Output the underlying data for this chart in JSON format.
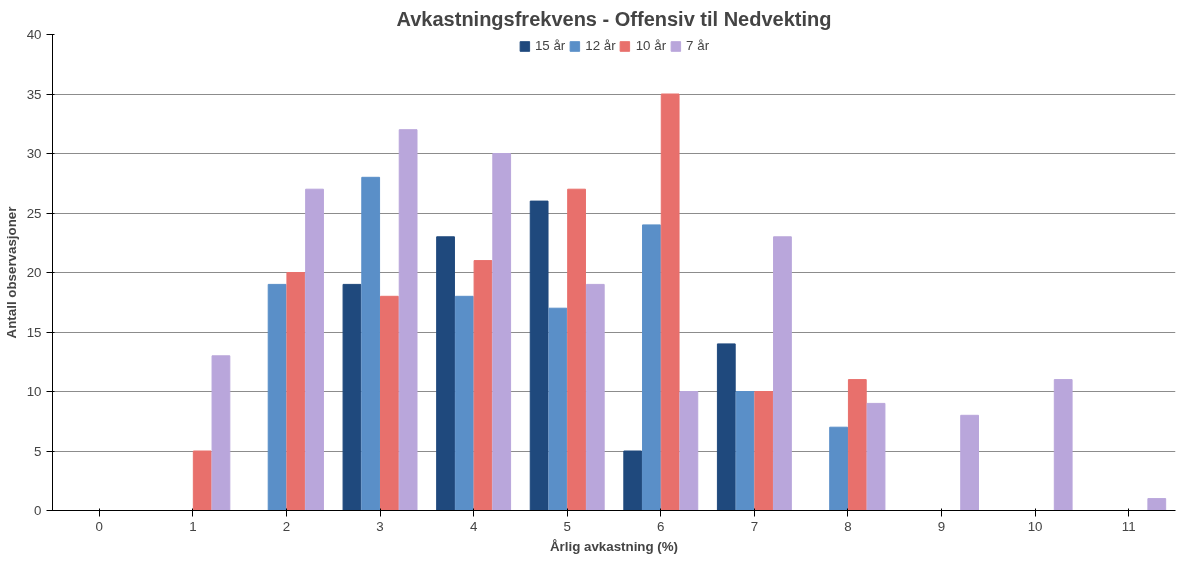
{
  "chart_data": {
    "type": "bar",
    "title": "Avkastningsfrekvens - Offensiv til Nedvekting",
    "xlabel": "Årlig avkastning (%)",
    "ylabel": "Antall observasjoner",
    "categories": [
      "0",
      "1",
      "2",
      "3",
      "4",
      "5",
      "6",
      "7",
      "8",
      "9",
      "10",
      "11"
    ],
    "series": [
      {
        "name": "15 år",
        "color": "#1f497d",
        "values": [
          0,
          0,
          0,
          19,
          23,
          26,
          5,
          14,
          0,
          0,
          0,
          0
        ]
      },
      {
        "name": "12 år",
        "color": "#5a8fc8",
        "values": [
          0,
          0,
          19,
          28,
          18,
          17,
          24,
          10,
          7,
          0,
          0,
          0
        ]
      },
      {
        "name": "10 år",
        "color": "#e8706c",
        "values": [
          0,
          5,
          20,
          18,
          21,
          27,
          35,
          10,
          11,
          0,
          0,
          0
        ]
      },
      {
        "name": "7 år",
        "color": "#b9a6db",
        "values": [
          0,
          13,
          27,
          32,
          30,
          19,
          10,
          23,
          9,
          8,
          11,
          1
        ]
      }
    ],
    "ylim": [
      0,
      40
    ],
    "yticks": [
      0,
      5,
      10,
      15,
      20,
      25,
      30,
      35,
      40
    ],
    "grid": "y",
    "legend": "top"
  }
}
